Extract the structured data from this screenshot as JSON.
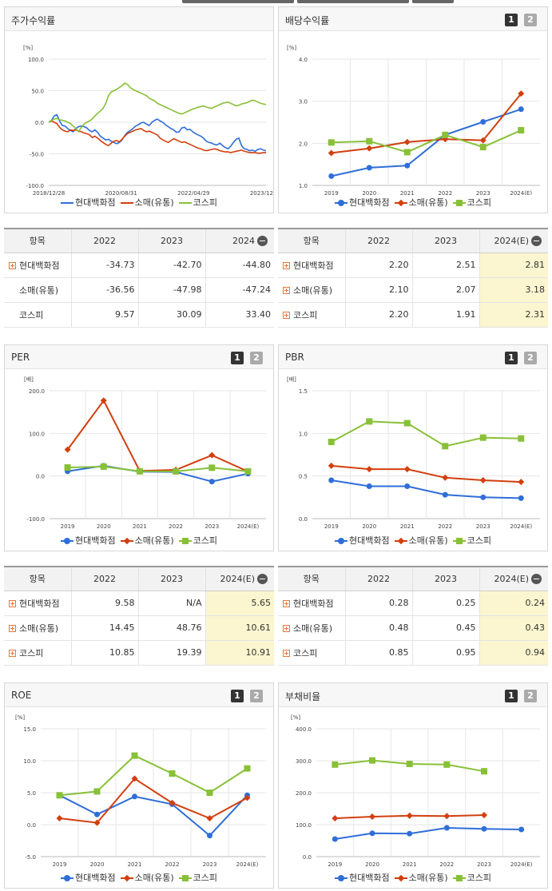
{
  "colors": {
    "s1": "#2f6ed8",
    "s2": "#d23f0e",
    "s3": "#88c038",
    "grid": "#e6e6e6",
    "axis": "#bbbbbb",
    "estimate_bg": "#fbf6cf"
  },
  "panels": {
    "stock": {
      "title": "주가수익률",
      "chart_data": {
        "type": "line",
        "unit": "[%]",
        "ylim": [
          -100,
          100
        ],
        "yticks": [
          "100.0",
          "50.0",
          "0.0",
          "-50.0",
          "-100.0"
        ],
        "xticks": [
          "2018/12/28",
          "2020/08/31",
          "2022/04/29",
          "2023/12/28"
        ],
        "legend": [
          "현대백화점",
          "소매(유통)",
          "코스피"
        ],
        "series": [
          {
            "name": "현대백화점",
            "color": "#2f6ed8",
            "values": [
              0,
              3,
              10,
              12,
              2,
              -5,
              -6,
              -10,
              -13,
              -15,
              -10,
              -7,
              -6,
              -7,
              -9,
              -13,
              -15,
              -12,
              -16,
              -22,
              -25,
              -28,
              -27,
              -30,
              -32,
              -34,
              -32,
              -28,
              -21,
              -16,
              -13,
              -10,
              -6,
              -4,
              -1,
              0,
              -3,
              -5,
              0,
              3,
              5,
              2,
              0,
              -4,
              -7,
              -10,
              -12,
              -16,
              -15,
              -9,
              -8,
              -12,
              -11,
              -15,
              -18,
              -20,
              -22,
              -25,
              -30,
              -32,
              -33,
              -35,
              -36,
              -33,
              -37,
              -40,
              -42,
              -38,
              -32,
              -27,
              -25,
              -37,
              -42,
              -43,
              -45,
              -44,
              -46,
              -43,
              -42,
              -44,
              -45
            ]
          },
          {
            "name": "소매(유통)",
            "color": "#d23f0e",
            "values": [
              0,
              2,
              0,
              -2,
              -8,
              -12,
              -14,
              -15,
              -12,
              -13,
              -12,
              -14,
              -15,
              -17,
              -18,
              -20,
              -24,
              -22,
              -25,
              -29,
              -32,
              -35,
              -37,
              -33,
              -30,
              -29,
              -31,
              -27,
              -22,
              -18,
              -16,
              -14,
              -12,
              -11,
              -10,
              -13,
              -15,
              -14,
              -16,
              -18,
              -20,
              -25,
              -28,
              -30,
              -32,
              -29,
              -26,
              -28,
              -30,
              -32,
              -31,
              -33,
              -35,
              -37,
              -39,
              -41,
              -42,
              -44,
              -45,
              -44,
              -43,
              -42,
              -43,
              -45,
              -46,
              -47,
              -47,
              -48,
              -47,
              -46,
              -45,
              -44,
              -46,
              -47,
              -48,
              -48,
              -48,
              -49,
              -49,
              -48,
              -48
            ]
          },
          {
            "name": "코스피",
            "color": "#88c038",
            "values": [
              0,
              3,
              5,
              6,
              4,
              3,
              2,
              0,
              -2,
              -6,
              -10,
              -15,
              -8,
              -3,
              0,
              2,
              5,
              10,
              14,
              18,
              22,
              30,
              42,
              48,
              50,
              52,
              55,
              58,
              62,
              60,
              55,
              52,
              50,
              48,
              46,
              44,
              42,
              38,
              36,
              34,
              30,
              28,
              26,
              24,
              22,
              20,
              18,
              16,
              14,
              13,
              15,
              17,
              19,
              21,
              22,
              24,
              25,
              26,
              24,
              23,
              22,
              24,
              26,
              28,
              30,
              31,
              32,
              30,
              28,
              26,
              27,
              29,
              30,
              31,
              33,
              35,
              34,
              32,
              30,
              29,
              28
            ]
          }
        ]
      }
    },
    "dividend": {
      "title": "배당수익률",
      "buttons": [
        "1",
        "2"
      ],
      "chart_data": {
        "type": "line",
        "unit": "[%]",
        "ylim": [
          1.0,
          4.0
        ],
        "yticks": [
          "4.0",
          "3.0",
          "2.0",
          "1.0"
        ],
        "categories": [
          "2019",
          "2020",
          "2021",
          "2022",
          "2023",
          "2024(E)"
        ],
        "legend": [
          "현대백화점",
          "소매(유통)",
          "코스피"
        ],
        "series": [
          {
            "name": "현대백화점",
            "color": "#2f6ed8",
            "marker": "circle",
            "values": [
              1.22,
              1.42,
              1.47,
              2.2,
              2.51,
              2.81
            ]
          },
          {
            "name": "소매(유통)",
            "color": "#d23f0e",
            "marker": "diamond",
            "values": [
              1.77,
              1.88,
              2.03,
              2.1,
              2.07,
              3.18
            ]
          },
          {
            "name": "코스피",
            "color": "#88c038",
            "marker": "square",
            "values": [
              2.02,
              2.05,
              1.79,
              2.2,
              1.91,
              2.31
            ]
          }
        ]
      }
    },
    "per": {
      "title": "PER",
      "buttons": [
        "1",
        "2"
      ],
      "chart_data": {
        "type": "line",
        "unit": "[배]",
        "ylim": [
          -100,
          200
        ],
        "yticks": [
          "200.0",
          "100.0",
          "0.0",
          "-100.0"
        ],
        "categories": [
          "2019",
          "2020",
          "2021",
          "2022",
          "2023",
          "2024(E)"
        ],
        "legend": [
          "현대백화점",
          "소매(유통)",
          "코스피"
        ],
        "series": [
          {
            "name": "현대백화점",
            "color": "#2f6ed8",
            "marker": "circle",
            "values": [
              11,
              24,
              10,
              9.58,
              -13,
              5.65
            ]
          },
          {
            "name": "소매(유통)",
            "color": "#d23f0e",
            "marker": "diamond",
            "values": [
              62,
              177,
              12,
              14.45,
              48.76,
              10.61
            ]
          },
          {
            "name": "코스피",
            "color": "#88c038",
            "marker": "square",
            "values": [
              20,
              22,
              11,
              10.85,
              19.39,
              10.91
            ]
          }
        ]
      }
    },
    "pbr": {
      "title": "PBR",
      "buttons": [
        "1",
        "2"
      ],
      "chart_data": {
        "type": "line",
        "unit": "[배]",
        "ylim": [
          0,
          1.5
        ],
        "yticks": [
          "1.5",
          "1.0",
          "0.5",
          "0.0"
        ],
        "categories": [
          "2019",
          "2020",
          "2021",
          "2022",
          "2023",
          "2024(E)"
        ],
        "legend": [
          "현대백화점",
          "소매(유통)",
          "코스피"
        ],
        "series": [
          {
            "name": "현대백화점",
            "color": "#2f6ed8",
            "marker": "circle",
            "values": [
              0.45,
              0.38,
              0.38,
              0.28,
              0.25,
              0.24
            ]
          },
          {
            "name": "소매(유통)",
            "color": "#d23f0e",
            "marker": "diamond",
            "values": [
              0.62,
              0.58,
              0.58,
              0.48,
              0.45,
              0.43
            ]
          },
          {
            "name": "코스피",
            "color": "#88c038",
            "marker": "square",
            "values": [
              0.9,
              1.14,
              1.12,
              0.85,
              0.95,
              0.94
            ]
          }
        ]
      }
    },
    "roe": {
      "title": "ROE",
      "buttons": [
        "1",
        "2"
      ],
      "chart_data": {
        "type": "line",
        "unit": "[%]",
        "ylim": [
          -5,
          15
        ],
        "yticks": [
          "15.0",
          "10.0",
          "5.0",
          "0.0",
          "-5.0"
        ],
        "categories": [
          "2019",
          "2020",
          "2021",
          "2022",
          "2023",
          "2024(E)"
        ],
        "legend": [
          "현대백화점",
          "소매(유통)",
          "코스피"
        ],
        "series": [
          {
            "name": "현대백화점",
            "color": "#2f6ed8",
            "marker": "circle",
            "values": [
              4.6,
              1.6,
              4.4,
              3.2,
              -1.7,
              4.6
            ]
          },
          {
            "name": "소매(유통)",
            "color": "#d23f0e",
            "marker": "diamond",
            "values": [
              1.0,
              0.3,
              7.2,
              3.4,
              1.0,
              4.2
            ]
          },
          {
            "name": "코스피",
            "color": "#88c038",
            "marker": "square",
            "values": [
              4.6,
              5.2,
              10.8,
              8.0,
              5.0,
              8.8
            ]
          }
        ]
      }
    },
    "debt": {
      "title": "부채비율",
      "buttons": [
        "1",
        "2"
      ],
      "chart_data": {
        "type": "line",
        "unit": "[%]",
        "ylim": [
          0,
          400
        ],
        "yticks": [
          "400.0",
          "300.0",
          "200.0",
          "100.0",
          "0.0"
        ],
        "categories": [
          "2019",
          "2020",
          "2021",
          "2022",
          "2023",
          "2024(E)"
        ],
        "legend": [
          "현대백화점",
          "소매(유통)",
          "코스피"
        ],
        "series": [
          {
            "name": "현대백화점",
            "color": "#2f6ed8",
            "marker": "circle",
            "values": [
              55,
              73,
              72,
              90,
              87,
              85
            ]
          },
          {
            "name": "소매(유통)",
            "color": "#d23f0e",
            "marker": "diamond",
            "values": [
              120,
              125,
              128,
              127,
              130,
              null
            ]
          },
          {
            "name": "코스피",
            "color": "#88c038",
            "marker": "square",
            "values": [
              288,
              301,
              290,
              288,
              267,
              null
            ]
          }
        ]
      }
    }
  },
  "tables": {
    "stock": {
      "headers": [
        "항목",
        "2022",
        "2023",
        "2024"
      ],
      "rows": [
        {
          "label": "현대백화점",
          "cells": [
            "-34.73",
            "-42.70",
            "-44.80"
          ]
        },
        {
          "label": "소매(유통)",
          "cells": [
            "-36.56",
            "-47.98",
            "-47.24"
          ]
        },
        {
          "label": "코스피",
          "cells": [
            "9.57",
            "30.09",
            "33.40"
          ]
        }
      ]
    },
    "dividend": {
      "headers": [
        "항목",
        "2022",
        "2023",
        "2024(E)"
      ],
      "rows": [
        {
          "label": "현대백화점",
          "cells": [
            "2.20",
            "2.51",
            "2.81"
          ]
        },
        {
          "label": "소매(유통)",
          "cells": [
            "2.10",
            "2.07",
            "3.18"
          ]
        },
        {
          "label": "코스피",
          "cells": [
            "2.20",
            "1.91",
            "2.31"
          ]
        }
      ]
    },
    "per": {
      "headers": [
        "항목",
        "2022",
        "2023",
        "2024(E)"
      ],
      "rows": [
        {
          "label": "현대백화점",
          "cells": [
            "9.58",
            "N/A",
            "5.65"
          ]
        },
        {
          "label": "소매(유통)",
          "cells": [
            "14.45",
            "48.76",
            "10.61"
          ]
        },
        {
          "label": "코스피",
          "cells": [
            "10.85",
            "19.39",
            "10.91"
          ]
        }
      ]
    },
    "pbr": {
      "headers": [
        "항목",
        "2022",
        "2023",
        "2024(E)"
      ],
      "rows": [
        {
          "label": "현대백화점",
          "cells": [
            "0.28",
            "0.25",
            "0.24"
          ]
        },
        {
          "label": "소매(유통)",
          "cells": [
            "0.48",
            "0.45",
            "0.43"
          ]
        },
        {
          "label": "코스피",
          "cells": [
            "0.85",
            "0.95",
            "0.94"
          ]
        }
      ]
    }
  }
}
